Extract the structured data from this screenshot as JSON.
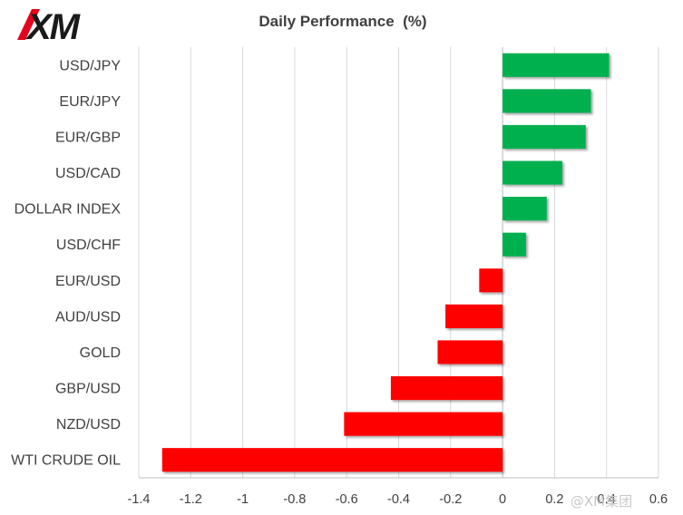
{
  "brand": {
    "logo_text": "XM",
    "logo_color": "#1a1a1a",
    "logo_accent": "#e3051b"
  },
  "chart_data": {
    "type": "bar",
    "orientation": "horizontal",
    "title": "Daily Performance  (%)",
    "categories": [
      "USD/JPY",
      "EUR/JPY",
      "EUR/GBP",
      "USD/CAD",
      "DOLLAR INDEX",
      "USD/CHF",
      "EUR/USD",
      "AUD/USD",
      "GOLD",
      "GBP/USD",
      "NZD/USD",
      "WTI CRUDE OIL"
    ],
    "values": [
      0.41,
      0.34,
      0.32,
      0.23,
      0.17,
      0.09,
      -0.09,
      -0.22,
      -0.25,
      -0.43,
      -0.61,
      -1.31
    ],
    "xlim": [
      -1.4,
      0.6
    ],
    "xticks": [
      -1.4,
      -1.2,
      -1,
      -0.8,
      -0.6,
      -0.4,
      -0.2,
      0,
      0.2,
      0.4,
      0.6
    ],
    "tick_labels": [
      "-1.4",
      "-1.2",
      "-1",
      "-0.8",
      "-0.6",
      "-0.4",
      "-0.2",
      "0",
      "0.2",
      "0.4",
      "0.6"
    ],
    "positive_color": "#00b050",
    "negative_color": "#ff0000",
    "grid": true,
    "legend": "none"
  },
  "watermark": "@XM集团"
}
